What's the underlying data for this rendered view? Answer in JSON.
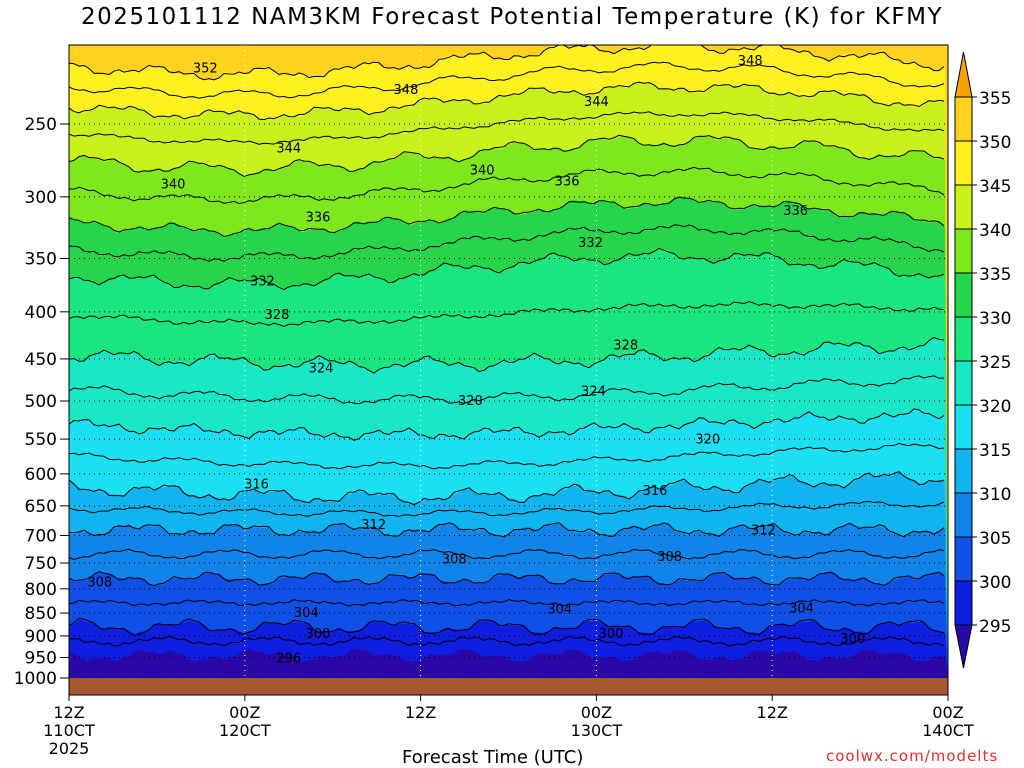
{
  "title": "2025101112 NAM3KM Forecast Potential Temperature (K) for KFMY",
  "xlabel": "Forecast Time (UTC)",
  "credit": "coolwx.com/modelts",
  "x_ticks": [
    {
      "line1": "12Z",
      "line2": "110CT",
      "line3": "2025"
    },
    {
      "line1": "00Z",
      "line2": "120CT",
      "line3": ""
    },
    {
      "line1": "12Z",
      "line2": "",
      "line3": ""
    },
    {
      "line1": "00Z",
      "line2": "130CT",
      "line3": ""
    },
    {
      "line1": "12Z",
      "line2": "",
      "line3": ""
    },
    {
      "line1": "00Z",
      "line2": "140CT",
      "line3": ""
    }
  ],
  "colorbar": {
    "labels": [
      "355",
      "350",
      "345",
      "340",
      "335",
      "330",
      "325",
      "320",
      "315",
      "310",
      "305",
      "300",
      "295"
    ],
    "colors": [
      "#f5a300",
      "#ffd21e",
      "#fff11f",
      "#c9f21c",
      "#7ee81c",
      "#25d64a",
      "#19e67e",
      "#19e8c6",
      "#19e0f2",
      "#10b5f0",
      "#1283e8",
      "#1050e6",
      "#0f1ee0",
      "#2a08a8"
    ]
  },
  "chart_data": {
    "type": "heatmap",
    "title": "2025101112 NAM3KM Forecast Potential Temperature (K) for KFMY",
    "xlabel": "Forecast Time (UTC)",
    "ylabel": "",
    "x_ticks": [
      "12Z 110CT 2025",
      "00Z 120CT",
      "12Z",
      "00Z 130CT",
      "12Z",
      "00Z 140CT"
    ],
    "x_hours": [
      0,
      12,
      24,
      36,
      48,
      60
    ],
    "xlim": [
      0,
      60
    ],
    "y_scale": "log",
    "y_ticks": [
      250,
      300,
      350,
      400,
      450,
      500,
      550,
      600,
      650,
      700,
      750,
      800,
      850,
      900,
      950,
      1000
    ],
    "ylim": [
      1000,
      200
    ],
    "z_levels": [
      295,
      300,
      305,
      310,
      315,
      320,
      325,
      330,
      335,
      340,
      345,
      350,
      355
    ],
    "contour_labels": [
      {
        "value": 352,
        "hour": 9.3,
        "p": 217
      },
      {
        "value": 348,
        "hour": 23.0,
        "p": 229
      },
      {
        "value": 348,
        "hour": 46.5,
        "p": 213
      },
      {
        "value": 344,
        "hour": 36.0,
        "p": 236
      },
      {
        "value": 344,
        "hour": 15.0,
        "p": 265
      },
      {
        "value": 340,
        "hour": 7.1,
        "p": 290
      },
      {
        "value": 340,
        "hour": 28.2,
        "p": 280
      },
      {
        "value": 336,
        "hour": 34.0,
        "p": 288
      },
      {
        "value": 336,
        "hour": 17.0,
        "p": 315
      },
      {
        "value": 336,
        "hour": 49.6,
        "p": 310
      },
      {
        "value": 332,
        "hour": 35.6,
        "p": 336
      },
      {
        "value": 332,
        "hour": 13.2,
        "p": 370
      },
      {
        "value": 328,
        "hour": 14.2,
        "p": 402
      },
      {
        "value": 328,
        "hour": 38.0,
        "p": 434
      },
      {
        "value": 324,
        "hour": 17.2,
        "p": 460
      },
      {
        "value": 324,
        "hour": 35.8,
        "p": 487
      },
      {
        "value": 320,
        "hour": 27.4,
        "p": 499
      },
      {
        "value": 320,
        "hour": 43.6,
        "p": 549
      },
      {
        "value": 316,
        "hour": 12.8,
        "p": 615
      },
      {
        "value": 316,
        "hour": 40.0,
        "p": 625
      },
      {
        "value": 312,
        "hour": 20.8,
        "p": 680
      },
      {
        "value": 312,
        "hour": 47.4,
        "p": 690
      },
      {
        "value": 308,
        "hour": 26.3,
        "p": 742
      },
      {
        "value": 308,
        "hour": 41.0,
        "p": 737
      },
      {
        "value": 308,
        "hour": 2.1,
        "p": 785
      },
      {
        "value": 304,
        "hour": 16.2,
        "p": 848
      },
      {
        "value": 304,
        "hour": 33.5,
        "p": 840
      },
      {
        "value": 304,
        "hour": 50.0,
        "p": 838
      },
      {
        "value": 300,
        "hour": 17.0,
        "p": 893
      },
      {
        "value": 300,
        "hour": 37.0,
        "p": 893
      },
      {
        "value": 300,
        "hour": 53.5,
        "p": 905
      },
      {
        "value": 296,
        "hour": 15.0,
        "p": 950
      }
    ],
    "grid": true,
    "legend": "colorbar-right"
  }
}
